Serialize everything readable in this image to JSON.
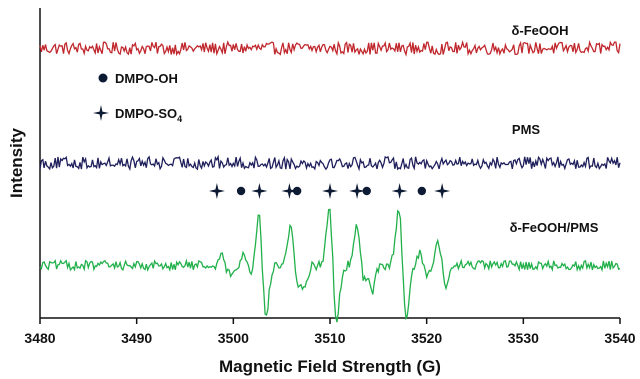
{
  "chart_data": {
    "type": "line",
    "xlabel": "Magnetic Field Strength (G)",
    "ylabel": "Intensity",
    "xlim": [
      3480,
      3540
    ],
    "x_ticks": [
      3480,
      3490,
      3500,
      3510,
      3520,
      3530,
      3540
    ],
    "y_ticks_shown": false,
    "grid": false,
    "legend_placement": "left",
    "legend": [
      {
        "marker": "circle",
        "label_main": "DMPO-OH",
        "label_sub": ""
      },
      {
        "marker": "star",
        "label_main": "DMPO-SO",
        "label_sub": "4"
      }
    ],
    "series": [
      {
        "name": "δ-FeOOH",
        "color": "#c0272d",
        "baseline": 0.87,
        "noise": 0.02,
        "signal": "none"
      },
      {
        "name": "PMS",
        "color": "#1f1f5c",
        "baseline": 0.5,
        "noise": 0.02,
        "signal": "none"
      },
      {
        "name": "δ-FeOOH/PMS",
        "color": "#22b04b",
        "baseline": 0.17,
        "noise": 0.015,
        "signal": "dmpo_adducts",
        "peaks": [
          {
            "x": 3499.2,
            "amp": 0.03,
            "type": "SO4"
          },
          {
            "x": 3501.5,
            "amp": 0.035,
            "type": "OH"
          },
          {
            "x": 3503.0,
            "amp": 0.17,
            "type": "SO4"
          },
          {
            "x": 3506.3,
            "amp": 0.13,
            "type": "SO4"
          },
          {
            "x": 3507.0,
            "amp": 0.06,
            "type": "OH"
          },
          {
            "x": 3510.3,
            "amp": 0.19,
            "type": "SO4"
          },
          {
            "x": 3513.2,
            "amp": 0.13,
            "type": "SO4"
          },
          {
            "x": 3514.0,
            "amp": 0.08,
            "type": "OH"
          },
          {
            "x": 3517.5,
            "amp": 0.19,
            "type": "SO4"
          },
          {
            "x": 3519.7,
            "amp": 0.04,
            "type": "OH"
          },
          {
            "x": 3521.6,
            "amp": 0.08,
            "type": "SO4"
          }
        ]
      }
    ],
    "markers_row": [
      {
        "x": 3498.3,
        "type": "star"
      },
      {
        "x": 3500.8,
        "type": "circle"
      },
      {
        "x": 3502.7,
        "type": "star"
      },
      {
        "x": 3505.8,
        "type": "star"
      },
      {
        "x": 3506.6,
        "type": "circle"
      },
      {
        "x": 3510.0,
        "type": "star"
      },
      {
        "x": 3512.8,
        "type": "star"
      },
      {
        "x": 3513.8,
        "type": "circle"
      },
      {
        "x": 3517.2,
        "type": "star"
      },
      {
        "x": 3519.5,
        "type": "circle"
      },
      {
        "x": 3521.6,
        "type": "star"
      }
    ],
    "colors": {
      "axis": "#111111",
      "marker": "#0d1a33"
    }
  }
}
